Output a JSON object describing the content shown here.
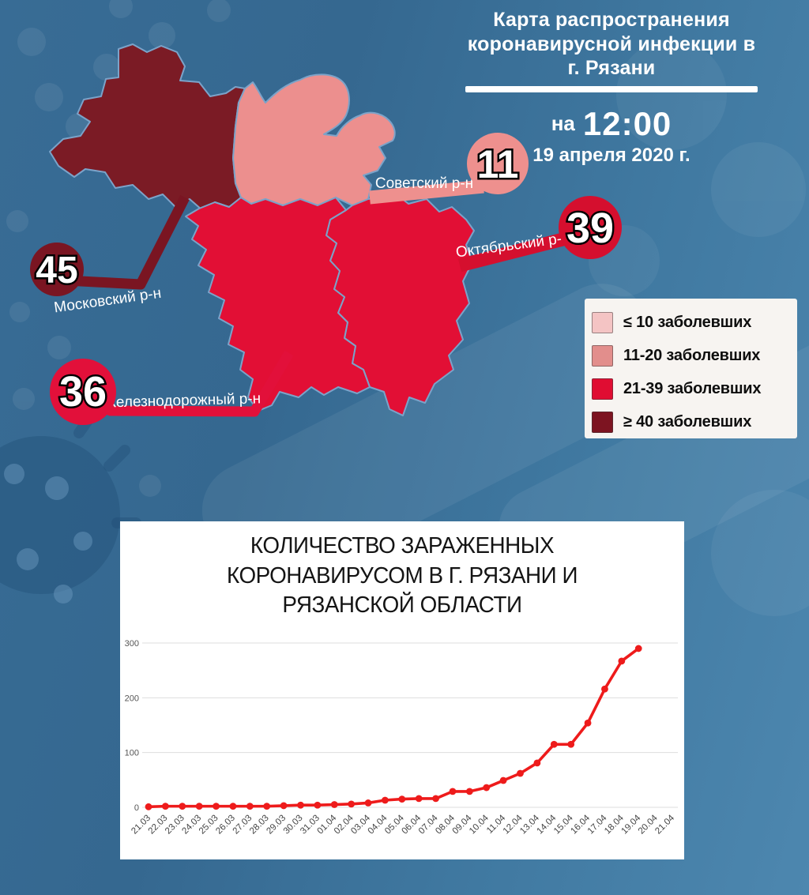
{
  "header": {
    "title_lines": [
      "Карта распространения",
      "коронавирусной инфекции  в",
      "г. Рязани"
    ],
    "time_prefix": "на",
    "time": "12:00",
    "date": "19 апреля 2020 г."
  },
  "map": {
    "districts": [
      {
        "name": "Советский р-н",
        "value": 11,
        "fill": "#ec8f8e",
        "accent": "#ee908e"
      },
      {
        "name": "Октябрьский р-н",
        "value": 39,
        "fill": "#e20f35",
        "accent": "#d50f2e"
      },
      {
        "name": "Московский р-н",
        "value": 45,
        "fill": "#7b1b25",
        "accent": "#7a1522"
      },
      {
        "name": "Железнодорожный р-н",
        "value": 36,
        "fill": "#e20f35",
        "accent": "#e2103a"
      }
    ],
    "border_color": "#7ba3c9"
  },
  "legend": {
    "items": [
      {
        "label": "≤ 10 заболевших",
        "color": "#f4c4c4"
      },
      {
        "label": "11-20 заболевших",
        "color": "#e28e8c"
      },
      {
        "label": "21-39 заболевших",
        "color": "#e00d32"
      },
      {
        "label": "≥ 40 заболевших",
        "color": "#7d1421"
      }
    ]
  },
  "chart_data": {
    "type": "line",
    "title": "КОЛИЧЕСТВО ЗАРАЖЕННЫХ КОРОНАВИРУСОМ В Г. РЯЗАНИ И РЯЗАНСКОЙ ОБЛАСТИ",
    "categories": [
      "21.03",
      "22.03",
      "23.03",
      "24.03",
      "25.03",
      "26.03",
      "27.03",
      "28.03",
      "29.03",
      "30.03",
      "31.03",
      "01.04",
      "02.04",
      "03.04",
      "04.04",
      "05.04",
      "06.04",
      "07.04",
      "08.04",
      "09.04",
      "10.04",
      "11.04",
      "12.04",
      "13.04",
      "14.04",
      "15.04",
      "16.04",
      "17.04",
      "18.04",
      "19.04",
      "20.04",
      "21.04"
    ],
    "values": [
      1,
      2,
      2,
      2,
      2,
      2,
      2,
      2,
      3,
      4,
      4,
      5,
      6,
      8,
      13,
      15,
      16,
      16,
      29,
      29,
      36,
      49,
      62,
      81,
      115,
      115,
      154,
      216,
      267,
      290,
      null,
      null
    ],
    "yticks": [
      0,
      100,
      200,
      300
    ],
    "ylim": [
      0,
      320
    ],
    "grid": true,
    "x_label_rotation": -45,
    "line_color": "#ee1b1b",
    "marker": "circle",
    "legend_position": "none"
  }
}
